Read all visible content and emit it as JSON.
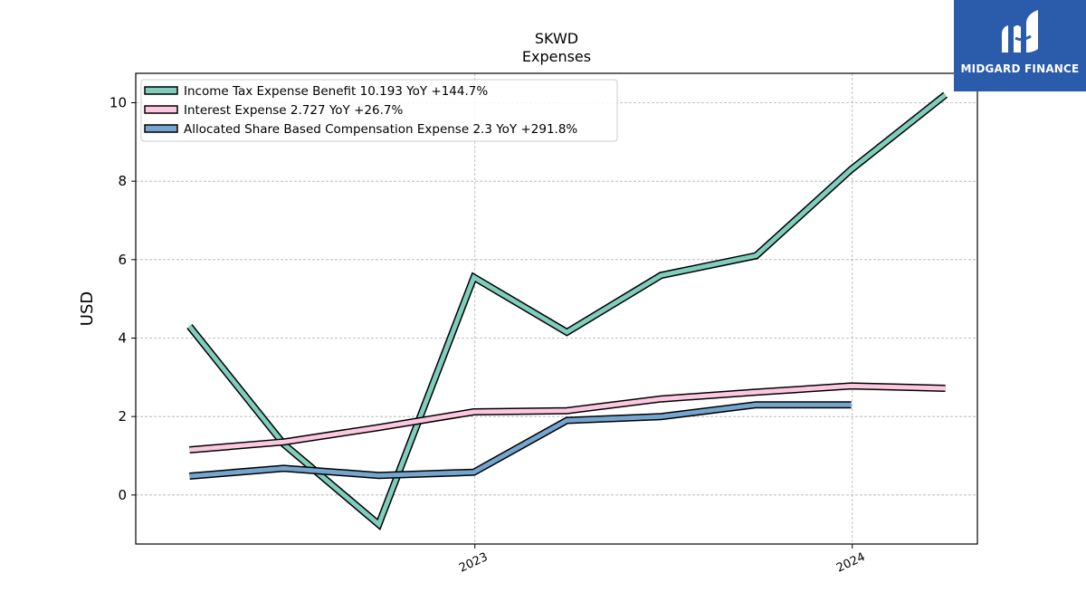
{
  "chart_data": {
    "type": "line",
    "title": "SKWD",
    "subtitle": "Expenses",
    "ylabel": "USD",
    "xlabel": "",
    "ylim": [
      -1.25,
      10.75
    ],
    "yticks": [
      0,
      2,
      4,
      6,
      8,
      10
    ],
    "x_axis": {
      "type": "date",
      "range": [
        "2022-02-07",
        "2024-05-01"
      ],
      "ticks": [
        {
          "date": "2023-01-01",
          "label": "2023"
        },
        {
          "date": "2024-01-01",
          "label": "2024"
        }
      ]
    },
    "grid": true,
    "legend_position": "top-left",
    "series": [
      {
        "name": "Income Tax Expense Benefit  10.193 YoY +144.7%",
        "color": "#7fcdbb",
        "x": [
          "2022-03-31",
          "2022-06-30",
          "2022-09-30",
          "2022-12-31",
          "2023-03-31",
          "2023-06-30",
          "2023-09-30",
          "2023-12-31",
          "2024-03-31"
        ],
        "values": [
          4.3,
          1.3,
          -0.75,
          5.55,
          4.15,
          5.6,
          6.1,
          8.3,
          10.2
        ]
      },
      {
        "name": "Interest Expense  2.727 YoY +26.7%",
        "color": "#fbc8e0",
        "x": [
          "2022-03-31",
          "2022-06-30",
          "2022-09-30",
          "2022-12-31",
          "2023-03-31",
          "2023-06-30",
          "2023-09-30",
          "2023-12-31",
          "2024-03-31"
        ],
        "values": [
          1.15,
          1.35,
          1.72,
          2.12,
          2.15,
          2.45,
          2.62,
          2.78,
          2.72
        ]
      },
      {
        "name": "Allocated Share Based Compensation Expense  2.3 YoY +291.8%",
        "color": "#74a5cf",
        "x": [
          "2022-03-31",
          "2022-06-30",
          "2022-09-30",
          "2022-12-31",
          "2023-03-31",
          "2023-06-30",
          "2023-09-30",
          "2023-12-31"
        ],
        "values": [
          0.48,
          0.68,
          0.5,
          0.58,
          1.9,
          2.0,
          2.3,
          2.3
        ]
      }
    ]
  },
  "logo": {
    "text": "MIDGARD FINANCE",
    "color": "#2b5bab"
  }
}
